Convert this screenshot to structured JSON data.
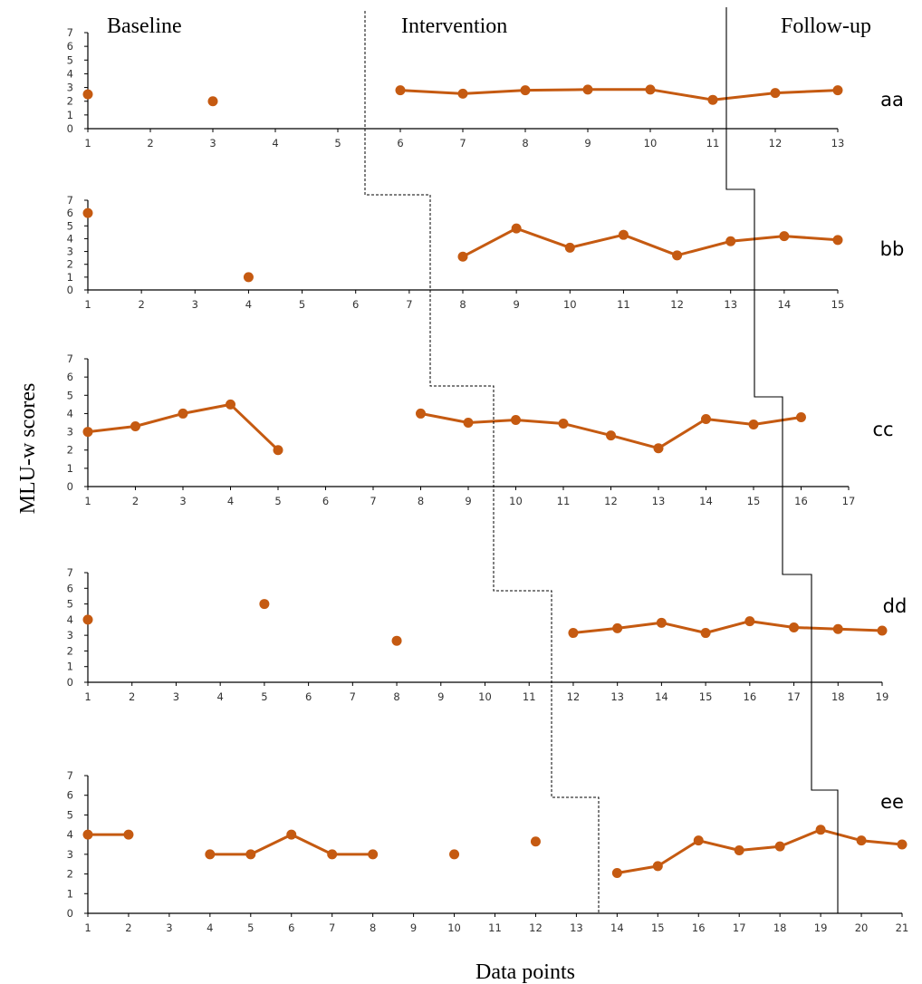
{
  "phase_labels": {
    "baseline": "Baseline",
    "intervention": "Intervention",
    "followup": "Follow-up"
  },
  "axis_titles": {
    "y": "MLU-w scores",
    "x": "Data points"
  },
  "colors": {
    "series": "#C55A11",
    "axis": "#000000",
    "tick_text": "#333333"
  },
  "chart_data": [
    {
      "type": "line",
      "participant": "aa",
      "xlim": [
        1,
        13
      ],
      "ylim": [
        0,
        7
      ],
      "x_ticks": [
        1,
        2,
        3,
        4,
        5,
        6,
        7,
        8,
        9,
        10,
        11,
        12,
        13
      ],
      "y_ticks": [
        0,
        1,
        2,
        3,
        4,
        5,
        6,
        7
      ],
      "points": [
        [
          1,
          2.5
        ],
        [
          3,
          2
        ],
        [
          6,
          2.8
        ],
        [
          7,
          2.55
        ],
        [
          8,
          2.8
        ],
        [
          9,
          2.85
        ],
        [
          10,
          2.85
        ],
        [
          11,
          2.1
        ],
        [
          12,
          2.6
        ],
        [
          13,
          2.8
        ]
      ],
      "segments": [
        [
          6,
          7,
          8,
          9,
          10,
          11,
          12,
          13
        ]
      ]
    },
    {
      "type": "line",
      "participant": "bb",
      "xlim": [
        1,
        15
      ],
      "ylim": [
        0,
        7
      ],
      "x_ticks": [
        1,
        2,
        3,
        4,
        5,
        6,
        7,
        8,
        9,
        10,
        11,
        12,
        13,
        14,
        15
      ],
      "y_ticks": [
        0,
        1,
        2,
        3,
        4,
        5,
        6,
        7
      ],
      "points": [
        [
          1,
          6
        ],
        [
          4,
          1
        ],
        [
          8,
          2.6
        ],
        [
          9,
          4.8
        ],
        [
          10,
          3.3
        ],
        [
          11,
          4.3
        ],
        [
          12,
          2.7
        ],
        [
          13,
          3.8
        ],
        [
          14,
          4.2
        ],
        [
          15,
          3.9
        ]
      ],
      "segments": [
        [
          8,
          9,
          10,
          11,
          12,
          13,
          14,
          15
        ]
      ]
    },
    {
      "type": "line",
      "participant": "cc",
      "xlim": [
        1,
        17
      ],
      "ylim": [
        0,
        7
      ],
      "x_ticks": [
        1,
        2,
        3,
        4,
        5,
        6,
        7,
        8,
        9,
        10,
        11,
        12,
        13,
        14,
        15,
        16,
        17
      ],
      "y_ticks": [
        0,
        1,
        2,
        3,
        4,
        5,
        6,
        7
      ],
      "points": [
        [
          1,
          3
        ],
        [
          2,
          3.3
        ],
        [
          3,
          4
        ],
        [
          4,
          4.5
        ],
        [
          5,
          2
        ],
        [
          8,
          4
        ],
        [
          9,
          3.5
        ],
        [
          10,
          3.65
        ],
        [
          11,
          3.45
        ],
        [
          12,
          2.8
        ],
        [
          13,
          2.1
        ],
        [
          14,
          3.7
        ],
        [
          15,
          3.4
        ],
        [
          16,
          3.8
        ]
      ],
      "segments": [
        [
          1,
          2,
          3,
          4,
          5
        ],
        [
          8,
          9,
          10,
          11,
          12,
          13,
          14,
          15,
          16
        ]
      ]
    },
    {
      "type": "line",
      "participant": "dd",
      "xlim": [
        1,
        19
      ],
      "ylim": [
        0,
        7
      ],
      "x_ticks": [
        1,
        2,
        3,
        4,
        5,
        6,
        7,
        8,
        9,
        10,
        11,
        12,
        13,
        14,
        15,
        16,
        17,
        18,
        19
      ],
      "y_ticks": [
        0,
        1,
        2,
        3,
        4,
        5,
        6,
        7
      ],
      "points": [
        [
          1,
          4
        ],
        [
          5,
          5
        ],
        [
          8,
          2.65
        ],
        [
          12,
          3.15
        ],
        [
          13,
          3.45
        ],
        [
          14,
          3.8
        ],
        [
          15,
          3.15
        ],
        [
          16,
          3.9
        ],
        [
          17,
          3.5
        ],
        [
          18,
          3.4
        ],
        [
          19,
          3.3
        ]
      ],
      "segments": [
        [
          12,
          13,
          14,
          15,
          16,
          17,
          18,
          19
        ]
      ]
    },
    {
      "type": "line",
      "participant": "ee",
      "xlim": [
        1,
        21
      ],
      "ylim": [
        0,
        7
      ],
      "x_ticks": [
        1,
        2,
        3,
        4,
        5,
        6,
        7,
        8,
        9,
        10,
        11,
        12,
        13,
        14,
        15,
        16,
        17,
        18,
        19,
        20,
        21
      ],
      "y_ticks": [
        0,
        1,
        2,
        3,
        4,
        5,
        6,
        7
      ],
      "points": [
        [
          1,
          4
        ],
        [
          2,
          4
        ],
        [
          4,
          3
        ],
        [
          5,
          3
        ],
        [
          6,
          4
        ],
        [
          7,
          3
        ],
        [
          8,
          3
        ],
        [
          10,
          3
        ],
        [
          12,
          3.65
        ],
        [
          14,
          2.05
        ],
        [
          15,
          2.4
        ],
        [
          16,
          3.7
        ],
        [
          17,
          3.2
        ],
        [
          18,
          3.4
        ],
        [
          19,
          4.25
        ],
        [
          20,
          3.7
        ],
        [
          21,
          3.5
        ]
      ],
      "segments": [
        [
          1,
          2
        ],
        [
          4,
          5,
          6,
          7,
          8
        ],
        [
          14,
          15,
          16,
          17,
          18,
          19,
          20,
          21
        ]
      ]
    }
  ]
}
